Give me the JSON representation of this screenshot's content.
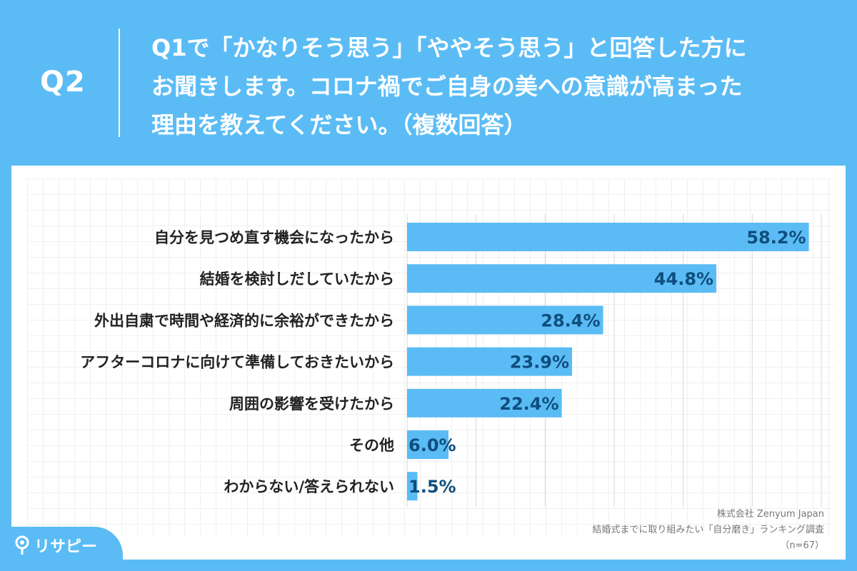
{
  "header": {
    "question_id": "Q2",
    "question_lines": [
      "Q1で「かなりそう思う」「ややそう思う」と回答した方に",
      "お聞きします。コロナ禍でご自身の美への意識が高まった",
      "理由を教えてください。（複数回答）"
    ]
  },
  "chart_data": {
    "type": "bar",
    "orientation": "horizontal",
    "title": "Q1で「かなりそう思う」「ややそう思う」と回答した方にお聞きします。コロナ禍でご自身の美への意識が高まった理由を教えてください。（複数回答）",
    "categories": [
      "自分を見つめ直す機会になったから",
      "結婚を検討しだしていたから",
      "外出自粛で時間や経済的に余裕ができたから",
      "アフターコロナに向けて準備しておきたいから",
      "周囲の影響を受けたから",
      "その他",
      "わからない/答えられない"
    ],
    "values": [
      58.2,
      44.8,
      28.4,
      23.9,
      22.4,
      6.0,
      1.5
    ],
    "value_labels": [
      "58.2%",
      "44.8%",
      "28.4%",
      "23.9%",
      "22.4%",
      "6.0%",
      "1.5%"
    ],
    "unit": "%",
    "xlim": [
      0,
      60
    ],
    "grid": true,
    "bar_color": "#5bbcf5",
    "label_color": "#0f4e7e"
  },
  "source": {
    "company": "株式会社 Zenyum Japan",
    "survey": "結婚式までに取り組みたい「自分磨き」ランキング調査",
    "sample": "（n=67）"
  },
  "brand": {
    "logo_text": "リサピー"
  },
  "colors": {
    "background": "#5bbcf5",
    "card": "#ffffff"
  }
}
